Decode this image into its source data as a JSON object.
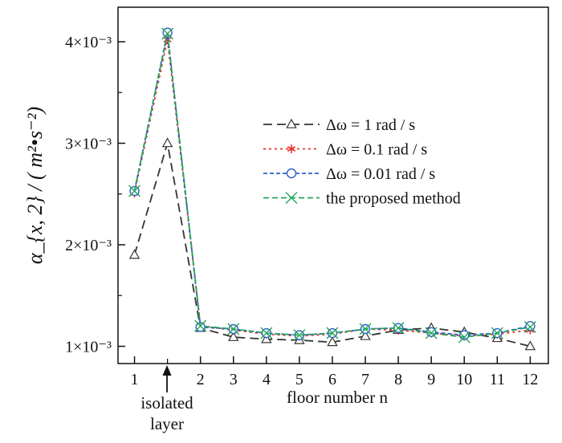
{
  "chart_data": {
    "type": "line",
    "ylabel": "α_{x, 2} / ( m²•s⁻²)",
    "xlabel": "floor number n",
    "x_tick_labels": [
      "1",
      "2",
      "3",
      "4",
      "5",
      "6",
      "7",
      "8",
      "9",
      "10",
      "11",
      "12"
    ],
    "x_axis_positions": [
      1,
      3,
      4,
      5,
      6,
      7,
      8,
      9,
      10,
      11,
      12,
      13
    ],
    "y_ticks": [
      0.001,
      0.002,
      0.003,
      0.004
    ],
    "y_tick_labels": [
      "1×10⁻³",
      "2×10⁻³",
      "3×10⁻³",
      "4×10⁻³"
    ],
    "xlim": [
      0.5,
      13.55
    ],
    "ylim": [
      0.00083,
      0.00434
    ],
    "annotation": {
      "text_line1": "isolated",
      "text_line2": "layer",
      "x": 2
    },
    "legend_position": "upper-right",
    "x": [
      1,
      2,
      3,
      4,
      5,
      6,
      7,
      8,
      9,
      10,
      11,
      12,
      13
    ],
    "series": [
      {
        "name": "Δω = 1 rad / s",
        "color": "#333333",
        "dash": "11,6",
        "marker": "triangle",
        "values": [
          0.0019,
          0.003,
          0.00118,
          0.00109,
          0.00107,
          0.00106,
          0.00104,
          0.0011,
          0.00116,
          0.00118,
          0.00114,
          0.00108,
          0.001
        ]
      },
      {
        "name": "Δω = 0.1 rad / s",
        "color": "#e8322a",
        "dash": "3,4",
        "marker": "asterisk",
        "values": [
          0.00251,
          0.00402,
          0.0012,
          0.00116,
          0.00112,
          0.0011,
          0.00112,
          0.00117,
          0.00116,
          0.00113,
          0.0011,
          0.00112,
          0.00116
        ]
      },
      {
        "name": "Δω = 0.01 rad / s",
        "color": "#2f5fc8",
        "dash": "5,3",
        "marker": "circle",
        "values": [
          0.00253,
          0.00409,
          0.00119,
          0.00117,
          0.00113,
          0.00111,
          0.00113,
          0.00117,
          0.00118,
          0.00114,
          0.00111,
          0.00113,
          0.0012
        ]
      },
      {
        "name": "the proposed method",
        "color": "#22a65a",
        "dash": "7,4",
        "marker": "x",
        "values": [
          0.00253,
          0.00408,
          0.0012,
          0.00117,
          0.00113,
          0.00111,
          0.00113,
          0.00117,
          0.00118,
          0.00113,
          0.00109,
          0.00113,
          0.00119
        ]
      }
    ]
  }
}
